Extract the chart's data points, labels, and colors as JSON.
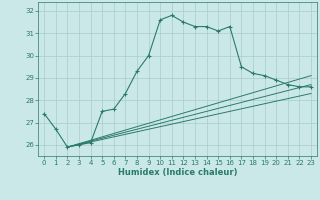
{
  "title": "",
  "xlabel": "Humidex (Indice chaleur)",
  "ylabel": "",
  "bg_color": "#cbe8e8",
  "grid_color": "#aacccc",
  "line_color": "#2a7a6a",
  "xlim": [
    -0.5,
    23.5
  ],
  "ylim": [
    25.5,
    32.4
  ],
  "xticks": [
    0,
    1,
    2,
    3,
    4,
    5,
    6,
    7,
    8,
    9,
    10,
    11,
    12,
    13,
    14,
    15,
    16,
    17,
    18,
    19,
    20,
    21,
    22,
    23
  ],
  "yticks": [
    26,
    27,
    28,
    29,
    30,
    31,
    32
  ],
  "main_x": [
    0,
    1,
    2,
    3,
    4,
    5,
    6,
    7,
    8,
    9,
    10,
    11,
    12,
    13,
    14,
    15,
    16,
    17,
    18,
    19,
    20,
    21,
    22,
    23
  ],
  "main_y": [
    27.4,
    26.7,
    25.9,
    26.0,
    26.1,
    27.5,
    27.6,
    28.3,
    29.3,
    30.0,
    31.6,
    31.8,
    31.5,
    31.3,
    31.3,
    31.1,
    31.3,
    29.5,
    29.2,
    29.1,
    28.9,
    28.7,
    28.6,
    28.6
  ],
  "line2_x": [
    2,
    23
  ],
  "line2_y": [
    25.9,
    29.1
  ],
  "line3_x": [
    2,
    23
  ],
  "line3_y": [
    25.9,
    28.7
  ],
  "line4_x": [
    2,
    23
  ],
  "line4_y": [
    25.9,
    28.3
  ],
  "xlabel_fontsize": 6.0,
  "tick_fontsize": 5.0
}
